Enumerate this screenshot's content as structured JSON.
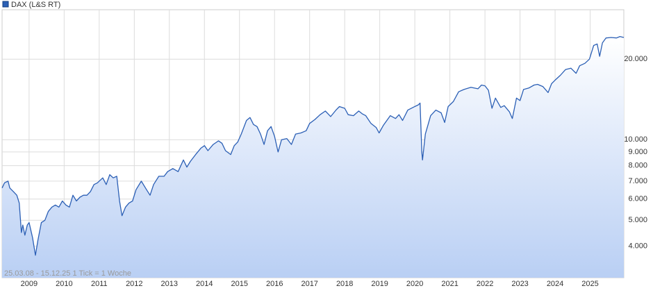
{
  "chart_data": {
    "type": "area",
    "log_scale_y": true,
    "grid": true,
    "legend_position": "top-left",
    "note": "25.03.08 - 15.12.25   1 Tick = 1 Woche",
    "xlim": [
      2008.23,
      2025.96
    ],
    "ylim": [
      3050,
      30600
    ],
    "xticks": [
      2009,
      2010,
      2011,
      2012,
      2013,
      2014,
      2015,
      2016,
      2017,
      2018,
      2019,
      2020,
      2021,
      2022,
      2023,
      2024,
      2025
    ],
    "yticks": [
      {
        "value": 4000,
        "label": "4.000"
      },
      {
        "value": 5000,
        "label": "5.000"
      },
      {
        "value": 6000,
        "label": "6.000"
      },
      {
        "value": 7000,
        "label": "7.000"
      },
      {
        "value": 8000,
        "label": "8.000"
      },
      {
        "value": 9000,
        "label": "9.000"
      },
      {
        "value": 10000,
        "label": "10.000"
      },
      {
        "value": 20000,
        "label": "20.000"
      }
    ],
    "x": [
      2008.23,
      2008.3,
      2008.4,
      2008.45,
      2008.55,
      2008.65,
      2008.72,
      2008.78,
      2008.82,
      2008.88,
      2008.95,
      2009.0,
      2009.1,
      2009.18,
      2009.25,
      2009.35,
      2009.45,
      2009.55,
      2009.65,
      2009.75,
      2009.85,
      2009.95,
      2010.05,
      2010.15,
      2010.25,
      2010.35,
      2010.45,
      2010.55,
      2010.65,
      2010.75,
      2010.85,
      2010.95,
      2011.1,
      2011.2,
      2011.3,
      2011.4,
      2011.5,
      2011.58,
      2011.65,
      2011.75,
      2011.85,
      2011.95,
      2012.05,
      2012.2,
      2012.35,
      2012.45,
      2012.55,
      2012.7,
      2012.85,
      2012.95,
      2013.1,
      2013.25,
      2013.4,
      2013.5,
      2013.6,
      2013.75,
      2013.9,
      2014.0,
      2014.1,
      2014.25,
      2014.4,
      2014.5,
      2014.6,
      2014.75,
      2014.85,
      2014.95,
      2015.05,
      2015.2,
      2015.3,
      2015.4,
      2015.5,
      2015.6,
      2015.7,
      2015.8,
      2015.9,
      2016.0,
      2016.1,
      2016.2,
      2016.35,
      2016.48,
      2016.6,
      2016.75,
      2016.9,
      2017.0,
      2017.15,
      2017.3,
      2017.45,
      2017.6,
      2017.75,
      2017.85,
      2018.0,
      2018.1,
      2018.25,
      2018.4,
      2018.5,
      2018.6,
      2018.75,
      2018.9,
      2018.98,
      2019.1,
      2019.3,
      2019.45,
      2019.55,
      2019.65,
      2019.8,
      2019.95,
      2020.1,
      2020.15,
      2020.2,
      2020.22,
      2020.3,
      2020.45,
      2020.6,
      2020.75,
      2020.85,
      2020.95,
      2021.1,
      2021.25,
      2021.4,
      2021.6,
      2021.8,
      2021.9,
      2022.0,
      2022.1,
      2022.2,
      2022.3,
      2022.45,
      2022.55,
      2022.7,
      2022.78,
      2022.9,
      2023.0,
      2023.1,
      2023.25,
      2023.4,
      2023.5,
      2023.65,
      2023.8,
      2023.9,
      2024.0,
      2024.15,
      2024.3,
      2024.45,
      2024.6,
      2024.7,
      2024.85,
      2024.98,
      2025.1,
      2025.2,
      2025.27,
      2025.35,
      2025.45,
      2025.6,
      2025.75,
      2025.85,
      2025.96
    ],
    "series": [
      {
        "name": "DAX (L&S RT)",
        "color": "#2b5fb5",
        "values": [
          6600,
          6900,
          7000,
          6600,
          6400,
          6200,
          5800,
          4500,
          4800,
          4400,
          4800,
          4900,
          4300,
          3700,
          4200,
          4900,
          5000,
          5400,
          5600,
          5700,
          5600,
          5900,
          5700,
          5600,
          6200,
          5900,
          6100,
          6200,
          6200,
          6400,
          6800,
          6900,
          7200,
          6800,
          7400,
          7200,
          7300,
          5900,
          5200,
          5600,
          5800,
          5900,
          6500,
          7000,
          6500,
          6200,
          6800,
          7300,
          7300,
          7600,
          7800,
          7600,
          8400,
          7900,
          8300,
          8800,
          9300,
          9500,
          9100,
          9600,
          9900,
          9700,
          9100,
          8800,
          9500,
          9800,
          10500,
          11800,
          12100,
          11400,
          11200,
          10500,
          9600,
          10800,
          11200,
          10300,
          9000,
          10000,
          10100,
          9600,
          10500,
          10600,
          10800,
          11500,
          11900,
          12400,
          12800,
          12200,
          12900,
          13300,
          13100,
          12400,
          12300,
          12800,
          12500,
          12300,
          11500,
          11100,
          10600,
          11300,
          12300,
          12000,
          12400,
          11800,
          12900,
          13200,
          13500,
          13700,
          9000,
          8400,
          10500,
          12300,
          12900,
          12600,
          11600,
          13300,
          13900,
          15100,
          15400,
          15700,
          15500,
          16000,
          15900,
          15300,
          13100,
          14300,
          13200,
          13400,
          12700,
          12000,
          14300,
          14000,
          15400,
          15600,
          16000,
          16100,
          15800,
          15000,
          16200,
          16700,
          17400,
          18300,
          18500,
          17700,
          18900,
          19300,
          20000,
          22500,
          22800,
          20500,
          23000,
          24000,
          24100,
          24000,
          24300,
          24100
        ]
      }
    ]
  }
}
